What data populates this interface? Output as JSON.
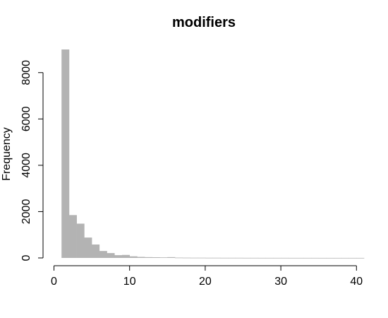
{
  "chart_data": {
    "type": "bar",
    "title": "modifiers",
    "xlabel": "",
    "ylabel": "Frequency",
    "xlim": [
      0,
      41
    ],
    "ylim": [
      0,
      9000
    ],
    "x_ticks": [
      0,
      10,
      20,
      30,
      40
    ],
    "y_ticks": [
      0,
      2000,
      4000,
      6000,
      8000
    ],
    "bar_color": "#b3b3b3",
    "grid": false,
    "bins": [
      {
        "x0": 1,
        "x1": 2,
        "count": 9000
      },
      {
        "x0": 2,
        "x1": 3,
        "count": 1850
      },
      {
        "x0": 3,
        "x1": 4,
        "count": 1480
      },
      {
        "x0": 4,
        "x1": 5,
        "count": 880
      },
      {
        "x0": 5,
        "x1": 6,
        "count": 580
      },
      {
        "x0": 6,
        "x1": 7,
        "count": 300
      },
      {
        "x0": 7,
        "x1": 8,
        "count": 210
      },
      {
        "x0": 8,
        "x1": 9,
        "count": 120
      },
      {
        "x0": 9,
        "x1": 10,
        "count": 130
      },
      {
        "x0": 10,
        "x1": 11,
        "count": 70
      },
      {
        "x0": 11,
        "x1": 12,
        "count": 45
      },
      {
        "x0": 12,
        "x1": 13,
        "count": 35
      },
      {
        "x0": 13,
        "x1": 14,
        "count": 30
      },
      {
        "x0": 14,
        "x1": 15,
        "count": 25
      },
      {
        "x0": 15,
        "x1": 16,
        "count": 35
      },
      {
        "x0": 16,
        "x1": 17,
        "count": 15
      },
      {
        "x0": 17,
        "x1": 18,
        "count": 12
      },
      {
        "x0": 18,
        "x1": 19,
        "count": 10
      },
      {
        "x0": 19,
        "x1": 20,
        "count": 10
      },
      {
        "x0": 20,
        "x1": 21,
        "count": 8
      },
      {
        "x0": 21,
        "x1": 22,
        "count": 8
      },
      {
        "x0": 22,
        "x1": 23,
        "count": 6
      },
      {
        "x0": 23,
        "x1": 24,
        "count": 6
      },
      {
        "x0": 24,
        "x1": 25,
        "count": 6
      },
      {
        "x0": 25,
        "x1": 26,
        "count": 5
      },
      {
        "x0": 26,
        "x1": 27,
        "count": 5
      },
      {
        "x0": 27,
        "x1": 28,
        "count": 4
      },
      {
        "x0": 28,
        "x1": 29,
        "count": 4
      },
      {
        "x0": 29,
        "x1": 30,
        "count": 4
      },
      {
        "x0": 30,
        "x1": 31,
        "count": 4
      },
      {
        "x0": 31,
        "x1": 32,
        "count": 3
      },
      {
        "x0": 32,
        "x1": 33,
        "count": 3
      },
      {
        "x0": 33,
        "x1": 34,
        "count": 3
      },
      {
        "x0": 34,
        "x1": 35,
        "count": 3
      },
      {
        "x0": 35,
        "x1": 36,
        "count": 2
      },
      {
        "x0": 36,
        "x1": 37,
        "count": 2
      },
      {
        "x0": 37,
        "x1": 38,
        "count": 2
      },
      {
        "x0": 38,
        "x1": 39,
        "count": 2
      },
      {
        "x0": 39,
        "x1": 40,
        "count": 2
      },
      {
        "x0": 40,
        "x1": 41,
        "count": 2
      }
    ]
  }
}
